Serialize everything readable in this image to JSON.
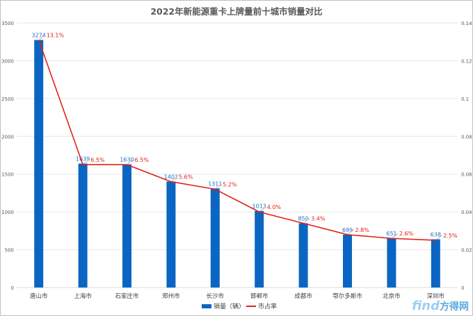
{
  "chart_data": {
    "type": "bar",
    "title": "2022年新能源重卡上牌量前十城市销量对比",
    "categories": [
      "唐山市",
      "上海市",
      "石家庄市",
      "郑州市",
      "长沙市",
      "邯郸市",
      "成都市",
      "鄂尔多斯市",
      "北京市",
      "深圳市"
    ],
    "series": [
      {
        "name": "销量（辆）",
        "type": "bar",
        "axis": "left",
        "color": "#0a66c2",
        "values": [
          3274,
          1639,
          1630,
          1402,
          1311,
          1013,
          850,
          699,
          651,
          638
        ],
        "labels": [
          "3274",
          "1639",
          "1630",
          "1402",
          "1311",
          "1013",
          "850",
          "699",
          "651",
          "638"
        ]
      },
      {
        "name": "市占率",
        "type": "line",
        "axis": "right",
        "color": "#e0201a",
        "values": [
          0.131,
          0.065,
          0.065,
          0.056,
          0.052,
          0.04,
          0.034,
          0.028,
          0.026,
          0.025
        ],
        "labels": [
          "13.1%",
          "6.5%",
          "6.5%",
          "5.6%",
          "5.2%",
          "4.0%",
          "3.4%",
          "2.8%",
          "2.6%",
          "2.5%"
        ]
      }
    ],
    "y_left": {
      "min": 0,
      "max": 3500,
      "ticks": [
        "0",
        "500",
        "1000",
        "1500",
        "2000",
        "2500",
        "3000",
        "3500"
      ]
    },
    "y_right": {
      "min": 0,
      "max": 0.14,
      "ticks": [
        "0",
        "0.02",
        "0.04",
        "0.06",
        "0.08",
        "0.1",
        "0.12",
        "0.14"
      ]
    },
    "grid": true,
    "legend_position": "bottom"
  },
  "watermark": {
    "text_find": "find",
    "text_brand": "方得网"
  }
}
